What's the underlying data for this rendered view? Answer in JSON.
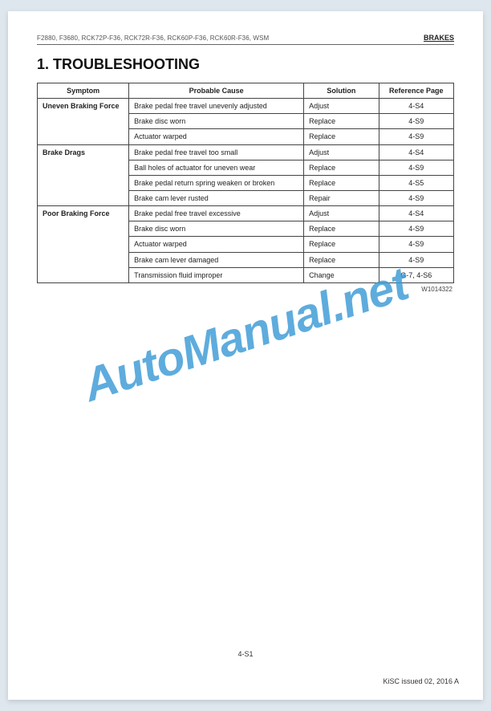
{
  "header": {
    "left": "F2880, F3680, RCK72P-F36, RCK72R-F36, RCK60P-F36, RCK60R-F36, WSM",
    "right": "BRAKES"
  },
  "sectionTitle": "1.  TROUBLESHOOTING",
  "table": {
    "headers": {
      "symptom": "Symptom",
      "cause": "Probable Cause",
      "solution": "Solution",
      "ref": "Reference Page"
    },
    "groups": [
      {
        "symptom": "Uneven Braking Force",
        "rows": [
          {
            "cause": "Brake pedal free travel unevenly adjusted",
            "solution": "Adjust",
            "ref": "4-S4"
          },
          {
            "cause": "Brake disc worn",
            "solution": "Replace",
            "ref": "4-S9"
          },
          {
            "cause": "Actuator warped",
            "solution": "Replace",
            "ref": "4-S9"
          }
        ]
      },
      {
        "symptom": "Brake Drags",
        "rows": [
          {
            "cause": "Brake pedal free travel too small",
            "solution": "Adjust",
            "ref": "4-S4"
          },
          {
            "cause": "Ball holes of actuator for uneven wear",
            "solution": "Replace",
            "ref": "4-S9"
          },
          {
            "cause": "Brake pedal return spring weaken or broken",
            "solution": "Replace",
            "ref": "4-S5"
          },
          {
            "cause": "Brake cam lever rusted",
            "solution": "Repair",
            "ref": "4-S9"
          }
        ]
      },
      {
        "symptom": "Poor Braking Force",
        "rows": [
          {
            "cause": "Brake pedal free travel excessive",
            "solution": "Adjust",
            "ref": "4-S4"
          },
          {
            "cause": "Brake disc worn",
            "solution": "Replace",
            "ref": "4-S9"
          },
          {
            "cause": "Actuator warped",
            "solution": "Replace",
            "ref": "4-S9"
          },
          {
            "cause": "Brake cam lever damaged",
            "solution": "Replace",
            "ref": "4-S9"
          },
          {
            "cause": "Transmission fluid improper",
            "solution": "Change",
            "ref": "G-7, 4-S6"
          }
        ]
      }
    ]
  },
  "codeUnder": "W1014322",
  "pageNum": "4-S1",
  "issued": "KiSC issued 02, 2016 A",
  "watermark": "AutoManual.net"
}
